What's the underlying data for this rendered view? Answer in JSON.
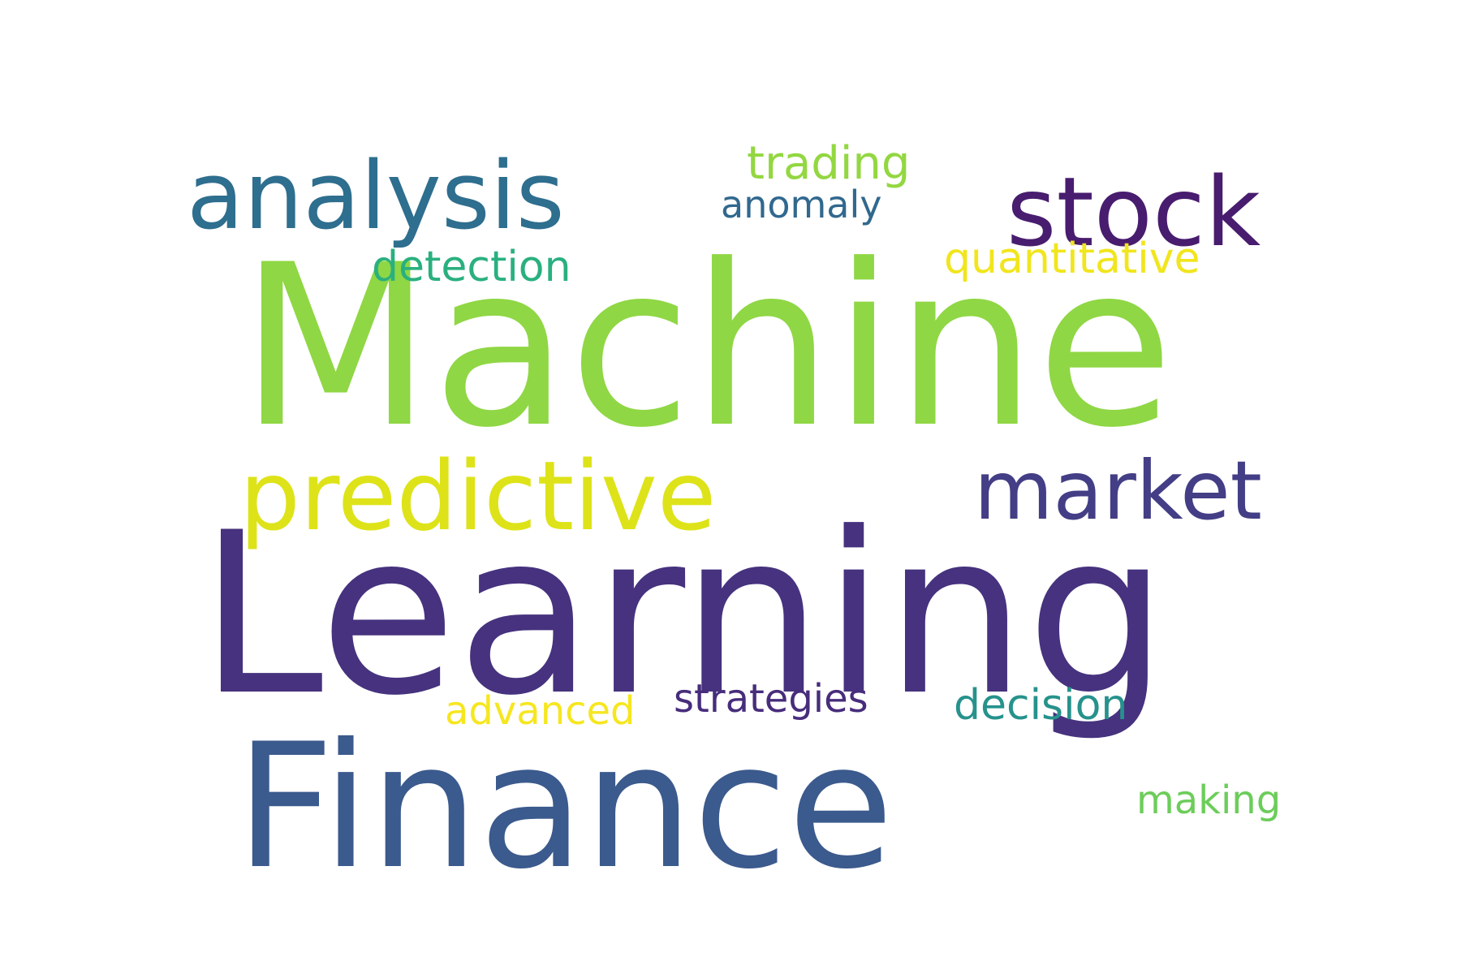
{
  "word_cloud": {
    "words": [
      {
        "text": "Machine",
        "color": "#8fd744"
      },
      {
        "text": "Learning",
        "color": "#46327e"
      },
      {
        "text": "Finance",
        "color": "#3b5a8d"
      },
      {
        "text": "analysis",
        "color": "#2e6e8e"
      },
      {
        "text": "stock",
        "color": "#481c6e"
      },
      {
        "text": "predictive",
        "color": "#dde318"
      },
      {
        "text": "market",
        "color": "#433e85"
      },
      {
        "text": "trading",
        "color": "#93d741"
      },
      {
        "text": "anomaly",
        "color": "#31688e"
      },
      {
        "text": "detection",
        "color": "#2ab07f"
      },
      {
        "text": "quantitative",
        "color": "#f1e51d"
      },
      {
        "text": "strategies",
        "color": "#472d7b"
      },
      {
        "text": "advanced",
        "color": "#f6e620"
      },
      {
        "text": "decision",
        "color": "#26928c"
      },
      {
        "text": "making",
        "color": "#6ccd5a"
      }
    ]
  }
}
